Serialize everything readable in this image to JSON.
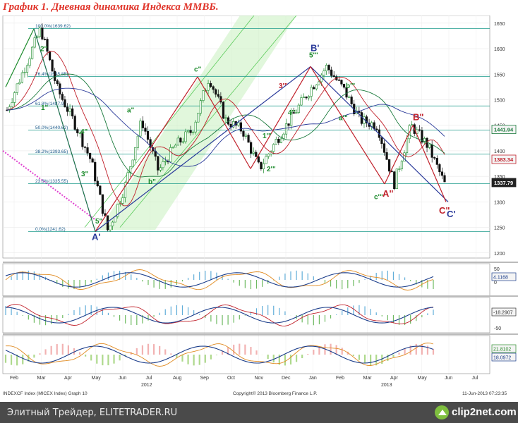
{
  "title": "График 1.   Дневная динамика Индекса ММВБ.",
  "footer": {
    "source": "Элитный Трейдер, ELITETRADER.RU",
    "logo": "clip2net.com"
  },
  "chart_bottom_text": {
    "left": "INDEXCF Index (MICEX Index) Graph 10",
    "center": "Copyright© 2013 Bloomberg Finance L.P.",
    "right": "11-Jun-2013 07:23:35"
  },
  "chart_data": {
    "type": "line",
    "main_price": {
      "y_axis_ticks": [
        1200,
        1250,
        1300,
        1350,
        1400,
        1450,
        1500,
        1550,
        1600,
        1650
      ],
      "ylim": [
        1190,
        1665
      ],
      "price_labels": [
        {
          "text": "1441.94",
          "value": 1441.94,
          "color": "#1a7a3c"
        },
        {
          "text": "1383.34",
          "value": 1383.34,
          "color": "#c0202a"
        },
        {
          "text": "1337.79",
          "value": 1337.79,
          "color": "#ffffff"
        }
      ],
      "fib_levels": [
        {
          "label": "100.0%(1639.62)",
          "value": 1639.62
        },
        {
          "label": "76.4%(1545.85)",
          "value": 1545.85
        },
        {
          "label": "61.8%(1487.9)",
          "value": 1487.9
        },
        {
          "label": "50.0%(1440.62)",
          "value": 1440.62
        },
        {
          "label": "38.2%(1393.65)",
          "value": 1393.65
        },
        {
          "label": "23.6%(1335.55)",
          "value": 1335.55
        },
        {
          "label": "0.0%(1241.62)",
          "value": 1241.62
        }
      ],
      "close_path": [
        [
          "Jan",
          1480
        ],
        [
          "Feb",
          1560
        ],
        [
          "Mar",
          1639
        ],
        [
          "Mar2",
          1520
        ],
        [
          "Apr",
          1455
        ],
        [
          "Apr2",
          1380
        ],
        [
          "May",
          1242
        ],
        [
          "Jun",
          1330
        ],
        [
          "Jun2",
          1460
        ],
        [
          "Jul",
          1360
        ],
        [
          "Jul2",
          1410
        ],
        [
          "Aug",
          1440
        ],
        [
          "Sep",
          1545
        ],
        [
          "Oct",
          1460
        ],
        [
          "Oct2",
          1440
        ],
        [
          "Nov",
          1365
        ],
        [
          "Nov2",
          1420
        ],
        [
          "Dec",
          1470
        ],
        [
          "Jan13",
          1520
        ],
        [
          "Jan13b",
          1565
        ],
        [
          "Feb13",
          1520
        ],
        [
          "Mar13",
          1460
        ],
        [
          "Mar13b",
          1450
        ],
        [
          "Apr13",
          1335
        ],
        [
          "May13",
          1450
        ],
        [
          "May13b",
          1410
        ],
        [
          "Jun13",
          1335
        ]
      ],
      "wave_labels": [
        {
          "text": "A'",
          "color": "#2a3a9a"
        },
        {
          "text": "B'",
          "color": "#2a3a9a"
        },
        {
          "text": "C'",
          "color": "#2a3a9a"
        },
        {
          "text": "B\"",
          "color": "#c0202a"
        },
        {
          "text": "A\"",
          "color": "#c0202a"
        },
        {
          "text": "C\"",
          "color": "#c0202a"
        },
        {
          "text": "2\"",
          "color": "#1a8a2a"
        },
        {
          "text": "1\"",
          "color": "#1a8a2a"
        },
        {
          "text": "4\"",
          "color": "#1a8a2a"
        },
        {
          "text": "3\"",
          "color": "#1a8a2a"
        },
        {
          "text": "5\"",
          "color": "#1a8a2a"
        },
        {
          "text": "a\"",
          "color": "#1a8a2a"
        },
        {
          "text": "b\"",
          "color": "#1a8a2a"
        },
        {
          "text": "c\"",
          "color": "#1a8a2a"
        },
        {
          "text": "5'\"",
          "color": "#1a8a2a"
        },
        {
          "text": "4'\"",
          "color": "#1a8a2a"
        },
        {
          "text": "3'\"",
          "color": "#c0202a"
        },
        {
          "text": "2'\"",
          "color": "#1a8a2a"
        },
        {
          "text": "1'\"",
          "color": "#1a8a2a"
        },
        {
          "text": "a'\"",
          "color": "#1a8a2a"
        },
        {
          "text": "b'\"",
          "color": "#1a8a2a"
        },
        {
          "text": "c'\"",
          "color": "#1a8a2a"
        }
      ]
    },
    "panel1": {
      "ticks": [
        50,
        0
      ],
      "labels": [
        {
          "text": "4.1168",
          "color": "#1a3c8a"
        }
      ]
    },
    "panel2": {
      "ticks": [
        -50
      ],
      "labels": [
        {
          "text": "-18.2907",
          "color": "#333333"
        }
      ]
    },
    "panel3": {
      "ticks": [],
      "labels": [
        {
          "text": "21.8102",
          "color": "#2a8a2a"
        },
        {
          "text": "18.0972",
          "color": "#1a3c8a"
        }
      ]
    },
    "x_axis": {
      "months": [
        "Feb",
        "Mar",
        "Apr",
        "May",
        "Jun",
        "Jul",
        "Aug",
        "Sep",
        "Oct",
        "Nov",
        "Dec",
        "Jan",
        "Feb",
        "Mar",
        "Apr",
        "May",
        "Jun",
        "Jul"
      ],
      "years": [
        "2012",
        "2013"
      ]
    },
    "colors": {
      "up": "#1a8a2a",
      "down": "#111111",
      "fib": "#1a9a8a",
      "red": "#c0202a",
      "blue": "#2a3a9a"
    }
  }
}
